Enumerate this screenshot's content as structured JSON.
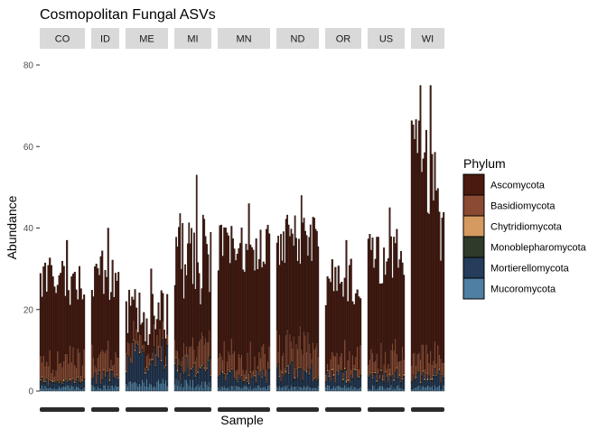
{
  "chart_data": {
    "type": "bar",
    "stacked": true,
    "faceted": true,
    "title": "Cosmopolitan Fungal ASVs",
    "xlabel": "Sample",
    "ylabel": "Abundance",
    "ylim": [
      0,
      80
    ],
    "yticks": [
      0,
      20,
      40,
      60,
      80
    ],
    "grid": false,
    "legend_position": "right",
    "legend": {
      "title": "Phylum",
      "entries": [
        {
          "name": "Ascomycota",
          "color": "#4a1a0f"
        },
        {
          "name": "Basidiomycota",
          "color": "#8b4a32"
        },
        {
          "name": "Chytridiomycota",
          "color": "#d49a5f"
        },
        {
          "name": "Monoblepharomycota",
          "color": "#2f3a2a"
        },
        {
          "name": "Mortierellomycota",
          "color": "#253c5a"
        },
        {
          "name": "Mucoromycota",
          "color": "#4f7fa3"
        }
      ]
    },
    "facets": [
      {
        "label": "CO",
        "n_samples": 29,
        "max": 37,
        "mean_total": 27,
        "basidio": 3,
        "mortierell": 1,
        "mucoro": 1
      },
      {
        "label": "ID",
        "n_samples": 19,
        "max": 40,
        "mean_total": 27,
        "basidio": 3,
        "mortierell": 2,
        "mucoro": 1
      },
      {
        "label": "ME",
        "n_samples": 29,
        "max": 30,
        "mean_total": 18,
        "basidio": 2,
        "mortierell": 5,
        "mucoro": 2
      },
      {
        "label": "MI",
        "n_samples": 29,
        "max": 53,
        "mean_total": 33,
        "basidio": 3,
        "mortierell": 3,
        "mucoro": 2
      },
      {
        "label": "MN",
        "n_samples": 36,
        "max": 46,
        "mean_total": 35,
        "basidio": 3,
        "mortierell": 2,
        "mucoro": 1
      },
      {
        "label": "ND",
        "n_samples": 33,
        "max": 48,
        "mean_total": 37,
        "basidio": 4,
        "mortierell": 3,
        "mucoro": 1
      },
      {
        "label": "OR",
        "n_samples": 23,
        "max": 37,
        "mean_total": 27,
        "basidio": 3,
        "mortierell": 2,
        "mucoro": 1
      },
      {
        "label": "US",
        "n_samples": 26,
        "max": 45,
        "mean_total": 33,
        "basidio": 3,
        "mortierell": 2,
        "mucoro": 1
      },
      {
        "label": "WI",
        "n_samples": 23,
        "max": 75,
        "mean_total": 48,
        "basidio": 3,
        "mortierell": 2,
        "mucoro": 1
      }
    ]
  }
}
